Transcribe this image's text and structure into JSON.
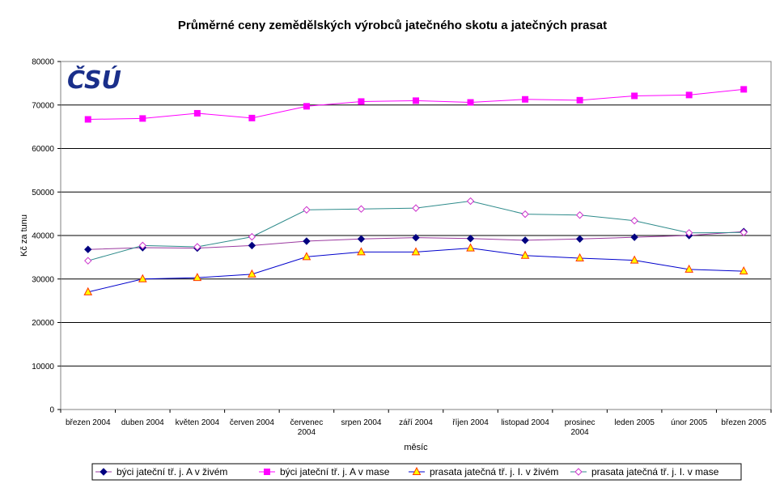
{
  "chart_data": {
    "type": "line",
    "title": "Průměrné ceny zemědělských výrobců jatečného skotu a jatečných prasat",
    "xlabel": "měsíc",
    "ylabel": "Kč za tunu",
    "ylim": [
      0,
      80000
    ],
    "yticks": [
      0,
      10000,
      20000,
      30000,
      40000,
      50000,
      60000,
      70000,
      80000
    ],
    "grid": "horizontal",
    "legend_position": "bottom",
    "logo_text": "ČSÚ",
    "categories": [
      [
        "březen 2004"
      ],
      [
        "duben 2004"
      ],
      [
        "květen 2004"
      ],
      [
        "červen 2004"
      ],
      [
        "červenec",
        "2004"
      ],
      [
        "srpen 2004"
      ],
      [
        "září 2004"
      ],
      [
        "říjen 2004"
      ],
      [
        "listopad 2004"
      ],
      [
        "prosinec",
        "2004"
      ],
      [
        "leden 2005"
      ],
      [
        "únor 2005"
      ],
      [
        "březen 2005"
      ]
    ],
    "series": [
      {
        "name": "býci jateční tř. j. A v živém",
        "color": "#000080",
        "line_color": "#9b3aa0",
        "marker": "diamond",
        "values": [
          36800,
          37200,
          37100,
          37700,
          38700,
          39200,
          39500,
          39300,
          38900,
          39200,
          39600,
          40000,
          40900
        ]
      },
      {
        "name": "býci jateční tř. j. A v mase",
        "color": "#ff00ff",
        "line_color": "#ff00ff",
        "marker": "square",
        "values": [
          66700,
          66900,
          68100,
          67000,
          69700,
          70800,
          71000,
          70600,
          71300,
          71100,
          72100,
          72300,
          73600
        ]
      },
      {
        "name": "prasata jatečná tř. j. I. v živém",
        "color": "#ffff00",
        "line_color": "#0000cc",
        "marker": "triangle",
        "values": [
          27000,
          30000,
          30300,
          31100,
          35100,
          36200,
          36200,
          37100,
          35400,
          34800,
          34300,
          32200,
          31800
        ]
      },
      {
        "name": "prasata jatečná tř. j. I. v mase",
        "color": "#ffffff",
        "line_color": "#2e8b8b",
        "marker": "diamond-open",
        "values": [
          34200,
          37700,
          37400,
          39700,
          45900,
          46100,
          46300,
          47900,
          44900,
          44700,
          43400,
          40600,
          40700
        ]
      }
    ]
  }
}
